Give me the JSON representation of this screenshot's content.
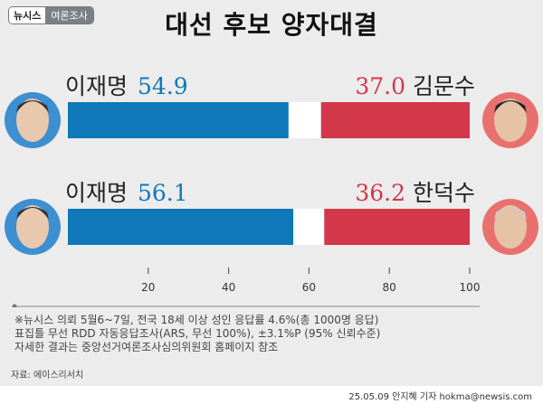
{
  "logo": {
    "brand": "뉴시스",
    "section": "여론조사"
  },
  "title": "대선 후보 양자대결",
  "colors": {
    "blue": "#0f78b8",
    "red": "#d2374a",
    "gap": "#ffffff",
    "photo_left_bg": "#3d8fd0",
    "photo_right_bg": "#e8716f"
  },
  "chart_data": {
    "type": "bar",
    "orientation": "horizontal-stacked",
    "title": "대선 후보 양자대결",
    "xlim": [
      0,
      100
    ],
    "ticks": [
      "20",
      "40",
      "60",
      "80",
      "100"
    ],
    "matchups": [
      {
        "left_name": "이재명",
        "left_value": 54.9,
        "left_label": "54.9",
        "right_name": "김문수",
        "right_value": 37.0,
        "right_label": "37.0"
      },
      {
        "left_name": "이재명",
        "left_value": 56.1,
        "left_label": "56.1",
        "right_name": "한덕수",
        "right_value": 36.2,
        "right_label": "36.2"
      }
    ]
  },
  "notes": [
    "※뉴시스 의뢰 5월6~7일, 전국 18세 이상 성인 응답률 4.6%(총 1000명 응답)",
    "표집틀 무선 RDD 자동응답조사(ARS, 무선 100%), ±3.1%P (95% 신뢰수준)",
    "자세한 결과는 중앙선거여론조사심의위원회 홈페이지 참조"
  ],
  "source": "자료: 에이스리서치",
  "credit": "25.05.09 안지혜 기자 hokma@newsis.com"
}
